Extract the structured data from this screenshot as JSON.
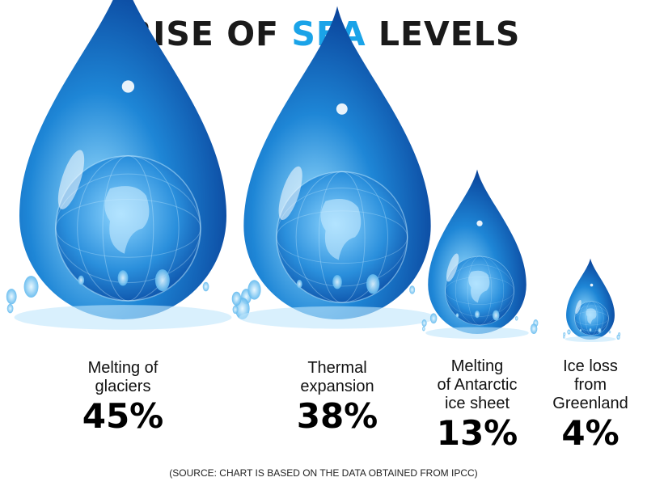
{
  "title": {
    "part1": "RISE OF ",
    "accent": "SEA",
    "part2": " LEVELS"
  },
  "colors": {
    "accent": "#1aa3e8",
    "drop_light": "#9fe0ff",
    "drop_mid": "#1e86d6",
    "drop_dark": "#06368f"
  },
  "chart_data": {
    "type": "pie",
    "title": "RISE OF SEA LEVELS",
    "unit": "%",
    "categories": [
      "Melting of glaciers",
      "Thermal expansion",
      "Melting of Antarctic ice sheet",
      "Ice loss from Greenland"
    ],
    "values": [
      45,
      38,
      13,
      4
    ],
    "label_lines": [
      [
        "Melting of",
        "glaciers"
      ],
      [
        "Thermal",
        "expansion"
      ],
      [
        "Melting",
        "of Antarctic",
        "ice sheet"
      ],
      [
        "Ice loss",
        "from",
        "Greenland"
      ]
    ],
    "value_labels": [
      "45%",
      "38%",
      "13%",
      "4%"
    ]
  },
  "source": "(SOURCE: CHART IS BASED ON THE DATA OBTAINED FROM IPCC)"
}
